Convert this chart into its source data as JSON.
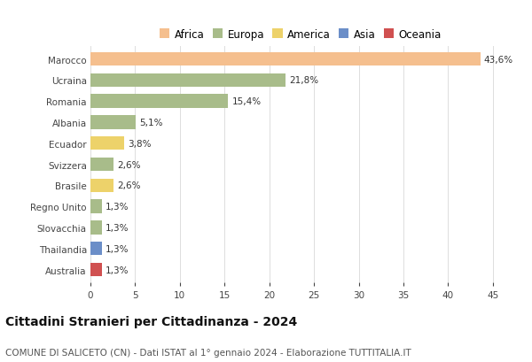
{
  "countries": [
    "Marocco",
    "Ucraina",
    "Romania",
    "Albania",
    "Ecuador",
    "Svizzera",
    "Brasile",
    "Regno Unito",
    "Slovacchia",
    "Thailandia",
    "Australia"
  ],
  "values": [
    43.6,
    21.8,
    15.4,
    5.1,
    3.8,
    2.6,
    2.6,
    1.3,
    1.3,
    1.3,
    1.3
  ],
  "labels": [
    "43,6%",
    "21,8%",
    "15,4%",
    "5,1%",
    "3,8%",
    "2,6%",
    "2,6%",
    "1,3%",
    "1,3%",
    "1,3%",
    "1,3%"
  ],
  "continents": [
    "Africa",
    "Europa",
    "Europa",
    "Europa",
    "America",
    "Europa",
    "America",
    "Europa",
    "Europa",
    "Asia",
    "Oceania"
  ],
  "bar_colors": {
    "Africa": "#F5BF8E",
    "Europa": "#A8BC8A",
    "America": "#EDD26A",
    "Asia": "#6B8EC8",
    "Oceania": "#D05050"
  },
  "legend_items": [
    "Africa",
    "Europa",
    "America",
    "Asia",
    "Oceania"
  ],
  "legend_colors": [
    "#F5BF8E",
    "#A8BC8A",
    "#EDD26A",
    "#6B8EC8",
    "#D05050"
  ],
  "xlim": [
    0,
    47
  ],
  "xticks": [
    0,
    5,
    10,
    15,
    20,
    25,
    30,
    35,
    40,
    45
  ],
  "title": "Cittadini Stranieri per Cittadinanza - 2024",
  "subtitle": "COMUNE DI SALICETO (CN) - Dati ISTAT al 1° gennaio 2024 - Elaborazione TUTTITALIA.IT",
  "background_color": "#ffffff",
  "bar_height": 0.65,
  "title_fontsize": 10,
  "subtitle_fontsize": 7.5,
  "label_fontsize": 7.5,
  "ytick_fontsize": 7.5,
  "xtick_fontsize": 7.5,
  "legend_fontsize": 8.5
}
